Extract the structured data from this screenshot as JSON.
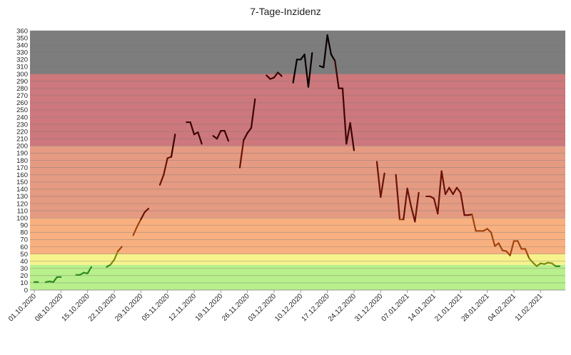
{
  "chart_data": {
    "type": "line",
    "title": "7-Tage-Inzidenz",
    "xlabel": "",
    "ylabel": "",
    "ylim": [
      0,
      360
    ],
    "ytick_step": 10,
    "grid": true,
    "x_start": "01.10.2020",
    "x_end": "16.02.2021",
    "x_ticks": [
      "01.10.2020",
      "08.10.2020",
      "15.10.2020",
      "22.10.2020",
      "29.10.2020",
      "05.11.2020",
      "12.11.2020",
      "19.11.2020",
      "26.11.2020",
      "03.12.2020",
      "10.12.2020",
      "17.12.2020",
      "24.12.2020",
      "31.12.2020",
      "07.01.2021",
      "14.01.2021",
      "21.01.2021",
      "28.01.2021",
      "04.02.2021",
      "11.02.2021"
    ],
    "bands": [
      {
        "from": 0,
        "to": 35,
        "color": "#b8f08c"
      },
      {
        "from": 35,
        "to": 50,
        "color": "#f7f38c"
      },
      {
        "from": 50,
        "to": 100,
        "color": "#f8b080"
      },
      {
        "from": 100,
        "to": 200,
        "color": "#e59a82"
      },
      {
        "from": 200,
        "to": 300,
        "color": "#cd787c"
      },
      {
        "from": 300,
        "to": 360,
        "color": "#7d7d7d"
      }
    ],
    "series": [
      {
        "points": [
          [
            "01.10.2020",
            11
          ],
          [
            "02.10.2020",
            11
          ],
          null,
          [
            "04.10.2020",
            11
          ],
          [
            "05.10.2020",
            12
          ],
          [
            "06.10.2020",
            11
          ],
          [
            "07.10.2020",
            18
          ],
          [
            "08.10.2020",
            18
          ],
          null,
          [
            "12.10.2020",
            21
          ],
          [
            "13.10.2020",
            21
          ],
          [
            "14.10.2020",
            24
          ],
          [
            "15.10.2020",
            23
          ],
          [
            "16.10.2020",
            32
          ],
          null,
          [
            "20.10.2020",
            32
          ],
          [
            "21.10.2020",
            35
          ],
          [
            "22.10.2020",
            42
          ],
          [
            "23.10.2020",
            54
          ],
          [
            "24.10.2020",
            60
          ],
          null,
          [
            "27.10.2020",
            76
          ],
          [
            "28.10.2020",
            88
          ],
          [
            "29.10.2020",
            98
          ],
          [
            "30.10.2020",
            108
          ],
          [
            "31.10.2020",
            113
          ],
          null,
          [
            "03.11.2020",
            146
          ],
          [
            "04.11.2020",
            160
          ],
          [
            "05.11.2020",
            183
          ],
          [
            "06.11.2020",
            185
          ],
          [
            "07.11.2020",
            216
          ],
          null,
          [
            "10.11.2020",
            233
          ],
          [
            "11.11.2020",
            233
          ],
          [
            "12.11.2020",
            216
          ],
          [
            "13.11.2020",
            219
          ],
          [
            "14.11.2020",
            203
          ],
          null,
          [
            "17.11.2020",
            214
          ],
          [
            "18.11.2020",
            210
          ],
          [
            "19.11.2020",
            221
          ],
          [
            "20.11.2020",
            221
          ],
          [
            "21.11.2020",
            207
          ],
          null,
          [
            "24.11.2020",
            170
          ],
          [
            "25.11.2020",
            208
          ],
          [
            "26.11.2020",
            218
          ],
          [
            "27.11.2020",
            225
          ],
          [
            "28.11.2020",
            265
          ],
          null,
          [
            "01.12.2020",
            298
          ],
          [
            "02.12.2020",
            293
          ],
          [
            "03.12.2020",
            295
          ],
          [
            "04.12.2020",
            302
          ],
          [
            "05.12.2020",
            297
          ],
          null,
          [
            "08.12.2020",
            288
          ],
          [
            "09.12.2020",
            320
          ],
          [
            "10.12.2020",
            320
          ],
          [
            "11.12.2020",
            327
          ],
          [
            "12.12.2020",
            282
          ],
          [
            "13.12.2020",
            329
          ],
          null,
          [
            "15.12.2020",
            311
          ],
          [
            "16.12.2020",
            309
          ],
          [
            "17.12.2020",
            354
          ],
          [
            "18.12.2020",
            327
          ],
          [
            "19.12.2020",
            318
          ],
          [
            "20.12.2020",
            280
          ],
          [
            "21.12.2020",
            280
          ],
          [
            "22.12.2020",
            203
          ],
          [
            "23.12.2020",
            232
          ],
          [
            "24.12.2020",
            194
          ],
          null,
          [
            "30.12.2020",
            178
          ],
          [
            "31.12.2020",
            129
          ],
          [
            "01.01.2021",
            162
          ],
          null,
          [
            "04.01.2021",
            160
          ],
          [
            "05.01.2021",
            98
          ],
          [
            "06.01.2021",
            98
          ],
          [
            "07.01.2021",
            141
          ],
          [
            "08.01.2021",
            116
          ],
          [
            "09.01.2021",
            95
          ],
          [
            "10.01.2021",
            135
          ],
          null,
          [
            "12.01.2021",
            130
          ],
          [
            "13.01.2021",
            130
          ],
          [
            "14.01.2021",
            127
          ],
          [
            "15.01.2021",
            106
          ],
          [
            "16.01.2021",
            165
          ],
          [
            "17.01.2021",
            133
          ],
          [
            "18.01.2021",
            142
          ],
          [
            "19.01.2021",
            133
          ],
          [
            "20.01.2021",
            142
          ],
          [
            "21.01.2021",
            135
          ],
          [
            "22.01.2021",
            104
          ],
          [
            "23.01.2021",
            104
          ],
          [
            "24.01.2021",
            105
          ],
          [
            "25.01.2021",
            82
          ],
          [
            "26.01.2021",
            82
          ],
          [
            "27.01.2021",
            82
          ],
          [
            "28.01.2021",
            85
          ],
          [
            "29.01.2021",
            80
          ],
          [
            "30.01.2021",
            61
          ],
          [
            "31.01.2021",
            65
          ],
          [
            "01.02.2021",
            55
          ],
          [
            "02.02.2021",
            54
          ],
          [
            "03.02.2021",
            48
          ],
          [
            "04.02.2021",
            68
          ],
          [
            "05.02.2021",
            68
          ],
          [
            "06.02.2021",
            57
          ],
          [
            "07.02.2021",
            57
          ],
          [
            "08.02.2021",
            44
          ],
          [
            "09.02.2021",
            38
          ],
          [
            "10.02.2021",
            33
          ],
          [
            "11.02.2021",
            37
          ],
          [
            "12.02.2021",
            36
          ],
          [
            "13.02.2021",
            38
          ],
          [
            "14.02.2021",
            37
          ],
          [
            "15.02.2021",
            33
          ],
          [
            "16.02.2021",
            33
          ]
        ]
      }
    ]
  }
}
